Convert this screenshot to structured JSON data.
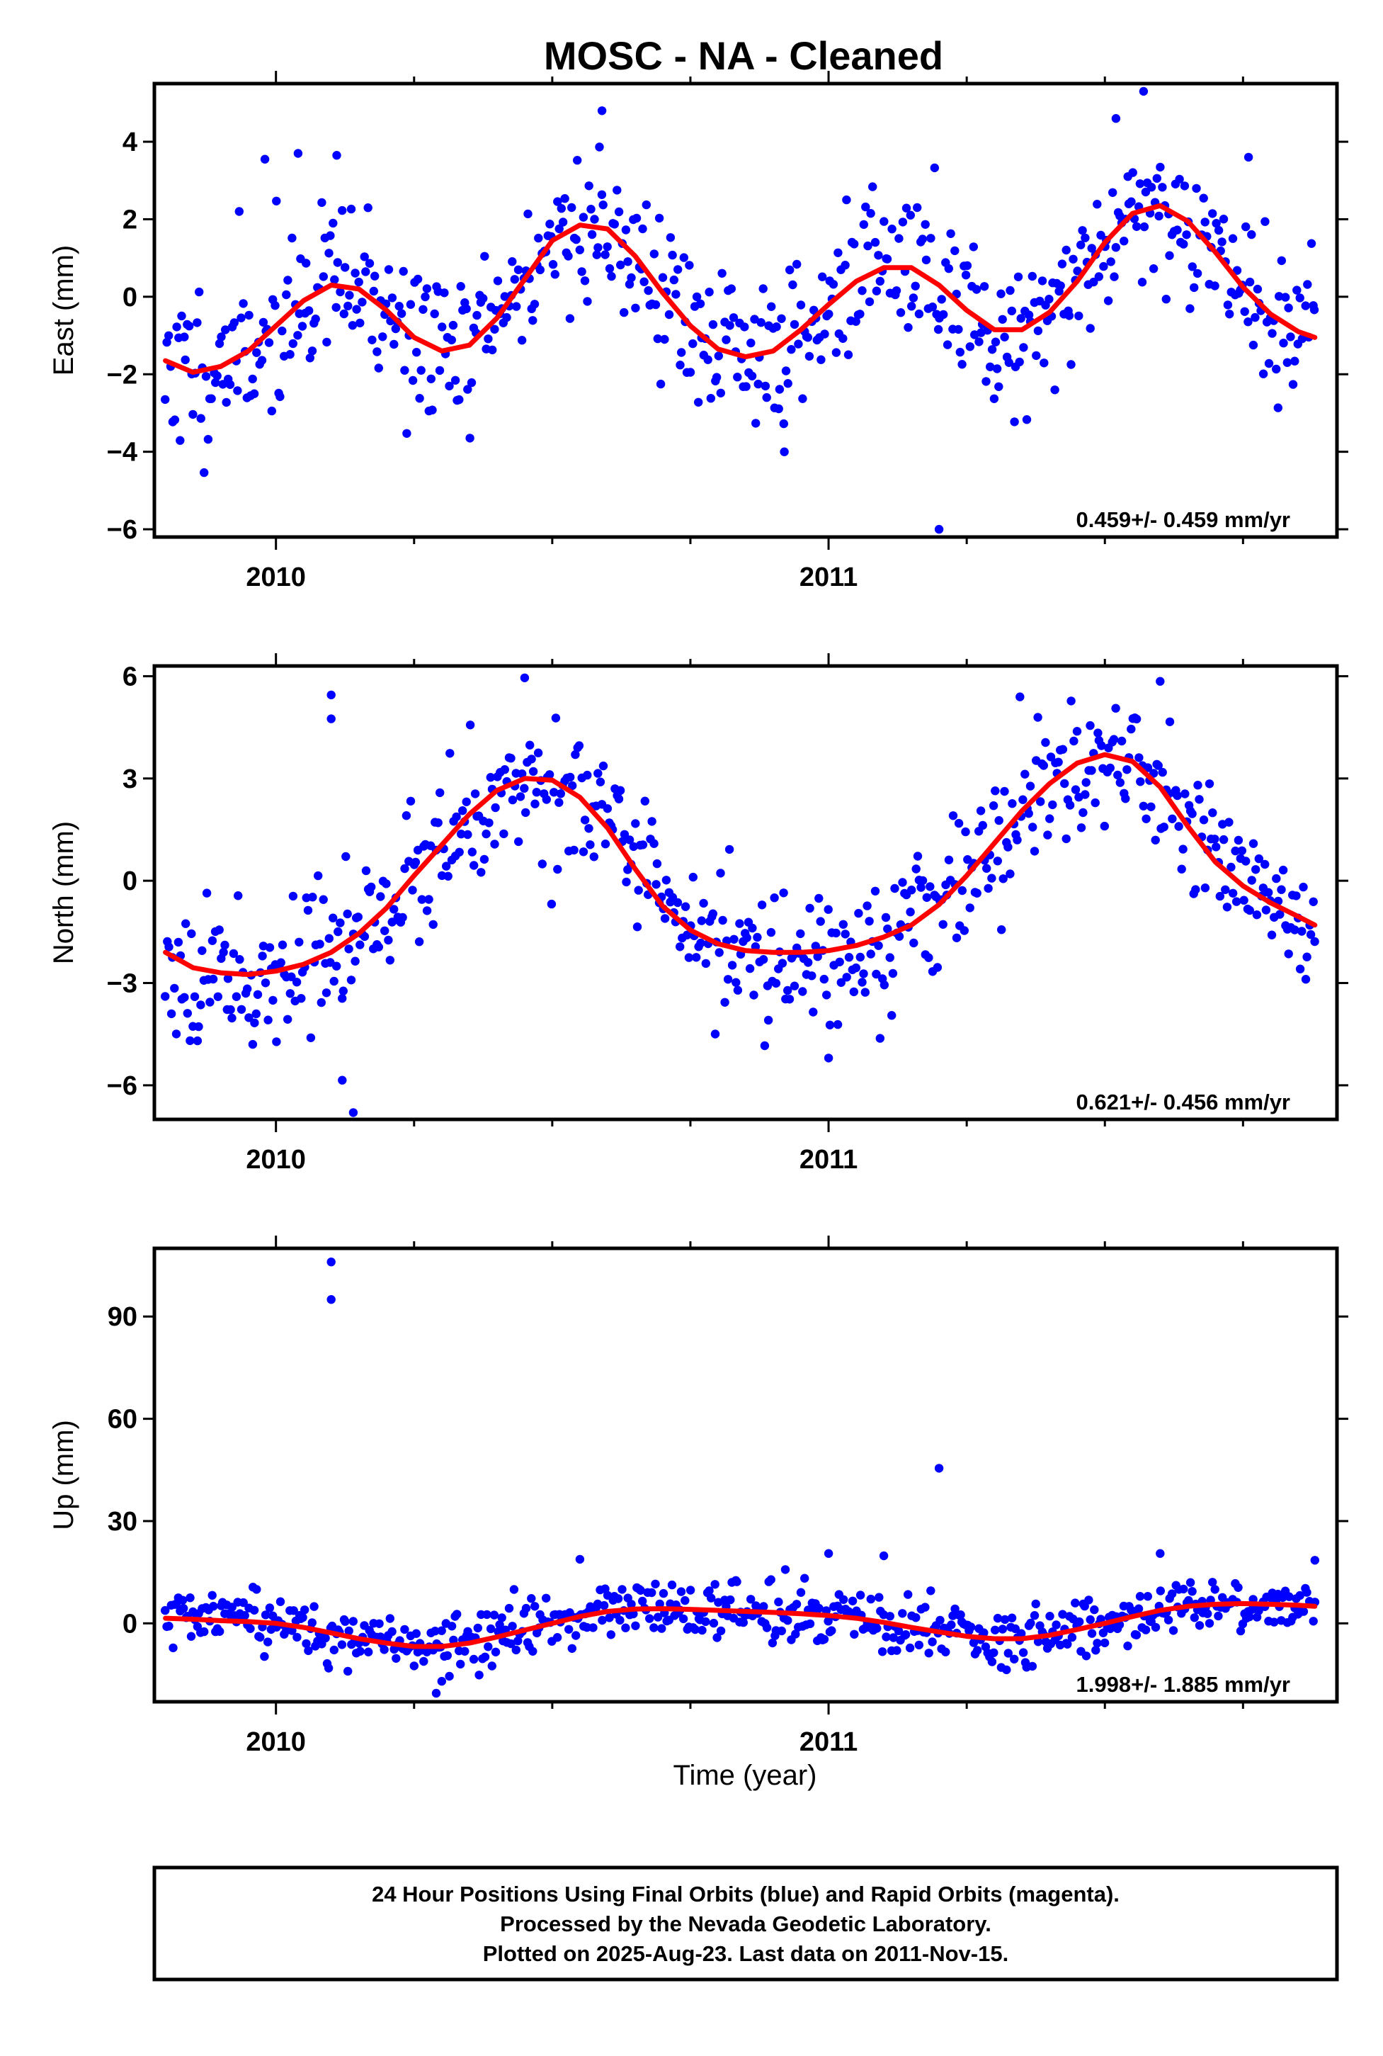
{
  "title": "MOSC  - NA - Cleaned",
  "xlabel": "Time (year)",
  "footer": {
    "line1": "24 Hour Positions Using Final Orbits (blue) and Rapid Orbits (magenta).",
    "line2": "Processed by the Nevada Geodetic Laboratory.",
    "line3": "Plotted on 2025-Aug-23. Last data on 2011-Nov-15."
  },
  "colors": {
    "points": "#0000ff",
    "fit": "#ff0000",
    "frame": "#000000"
  },
  "chart_data": [
    {
      "type": "scatter",
      "component": "east",
      "ylabel": "East (mm)",
      "rate": "0.459+/- 0.459 mm/yr",
      "xlim": [
        2009.78,
        2011.92
      ],
      "ylim": [
        -6.2,
        5.5
      ],
      "yticks": [
        4,
        2,
        0,
        -2,
        -4,
        -6
      ],
      "ytick_labels": [
        "4",
        "2",
        "0",
        "−2",
        "−4",
        "−6"
      ],
      "xticks": [
        2010,
        2011
      ],
      "xtick_labels": [
        "2010",
        "2011"
      ],
      "fit_x": [
        2009.8,
        2009.85,
        2009.9,
        2009.95,
        2010.0,
        2010.05,
        2010.1,
        2010.15,
        2010.2,
        2010.25,
        2010.3,
        2010.35,
        2010.4,
        2010.45,
        2010.5,
        2010.55,
        2010.6,
        2010.65,
        2010.7,
        2010.75,
        2010.8,
        2010.85,
        2010.9,
        2010.95,
        2011.0,
        2011.05,
        2011.1,
        2011.15,
        2011.2,
        2011.25,
        2011.3,
        2011.35,
        2011.4,
        2011.45,
        2011.5,
        2011.55,
        2011.6,
        2011.65,
        2011.7,
        2011.75,
        2011.8,
        2011.85,
        2011.88
      ],
      "fit_y": [
        -1.65,
        -1.95,
        -1.8,
        -1.4,
        -0.75,
        -0.1,
        0.3,
        0.2,
        -0.35,
        -1.05,
        -1.4,
        -1.25,
        -0.55,
        0.45,
        1.45,
        1.85,
        1.75,
        1.05,
        0.1,
        -0.75,
        -1.35,
        -1.55,
        -1.4,
        -0.85,
        -0.2,
        0.4,
        0.75,
        0.75,
        0.3,
        -0.35,
        -0.85,
        -0.85,
        -0.4,
        0.4,
        1.4,
        2.15,
        2.35,
        1.95,
        1.15,
        0.25,
        -0.45,
        -0.9,
        -1.05
      ],
      "scatter": {
        "seed": 11,
        "x_start": 2009.8,
        "x_end": 2011.88,
        "n": 620,
        "noise": 1.05,
        "outliers": [
          [
            2009.98,
            3.55
          ],
          [
            2010.04,
            3.7
          ],
          [
            2010.11,
            3.65
          ],
          [
            2010.59,
            4.8
          ],
          [
            2010.92,
            -4.0
          ],
          [
            2011.2,
            -6.0
          ],
          [
            2011.57,
            5.3
          ],
          [
            2011.52,
            4.6
          ],
          [
            2011.76,
            3.6
          ]
        ]
      }
    },
    {
      "type": "scatter",
      "component": "north",
      "ylabel": "North (mm)",
      "rate": "0.621+/- 0.456 mm/yr",
      "xlim": [
        2009.78,
        2011.92
      ],
      "ylim": [
        -7.0,
        6.3
      ],
      "yticks": [
        6,
        3,
        0,
        -3,
        -6
      ],
      "ytick_labels": [
        "6",
        "3",
        "0",
        "−3",
        "−6"
      ],
      "xticks": [
        2010,
        2011
      ],
      "xtick_labels": [
        "2010",
        "2011"
      ],
      "fit_x": [
        2009.8,
        2009.85,
        2009.9,
        2009.95,
        2010.0,
        2010.05,
        2010.1,
        2010.15,
        2010.2,
        2010.25,
        2010.3,
        2010.35,
        2010.4,
        2010.45,
        2010.5,
        2010.55,
        2010.6,
        2010.65,
        2010.7,
        2010.75,
        2010.8,
        2010.85,
        2010.9,
        2010.95,
        2011.0,
        2011.05,
        2011.1,
        2011.15,
        2011.2,
        2011.25,
        2011.3,
        2011.35,
        2011.4,
        2011.45,
        2011.5,
        2011.55,
        2011.6,
        2011.65,
        2011.7,
        2011.75,
        2011.8,
        2011.85,
        2011.88
      ],
      "fit_y": [
        -2.1,
        -2.55,
        -2.7,
        -2.75,
        -2.65,
        -2.45,
        -2.1,
        -1.55,
        -0.8,
        0.15,
        1.05,
        1.95,
        2.65,
        3.0,
        2.95,
        2.45,
        1.55,
        0.35,
        -0.75,
        -1.45,
        -1.85,
        -2.05,
        -2.1,
        -2.1,
        -2.05,
        -1.9,
        -1.65,
        -1.3,
        -0.7,
        0.15,
        1.1,
        2.05,
        2.85,
        3.45,
        3.7,
        3.5,
        2.75,
        1.6,
        0.55,
        -0.15,
        -0.65,
        -1.05,
        -1.3
      ],
      "scatter": {
        "seed": 23,
        "x_start": 2009.8,
        "x_end": 2011.88,
        "n": 620,
        "noise": 1.0,
        "outliers": [
          [
            2010.1,
            5.45
          ],
          [
            2010.1,
            4.75
          ],
          [
            2010.14,
            -6.8
          ],
          [
            2010.45,
            5.95
          ],
          [
            2011.0,
            -5.2
          ],
          [
            2011.6,
            5.85
          ],
          [
            2010.12,
            -5.85
          ]
        ]
      }
    },
    {
      "type": "scatter",
      "component": "up",
      "ylabel": "Up (mm)",
      "rate": "1.998+/- 1.885 mm/yr",
      "xlim": [
        2009.78,
        2011.92
      ],
      "ylim": [
        -23,
        110
      ],
      "yticks": [
        90,
        60,
        30,
        0
      ],
      "ytick_labels": [
        "90",
        "60",
        "30",
        "0"
      ],
      "xticks": [
        2010,
        2011
      ],
      "xtick_labels": [
        "2010",
        "2011"
      ],
      "fit_x": [
        2009.8,
        2009.85,
        2009.9,
        2009.95,
        2010.0,
        2010.05,
        2010.1,
        2010.15,
        2010.2,
        2010.25,
        2010.3,
        2010.35,
        2010.4,
        2010.45,
        2010.5,
        2010.55,
        2010.6,
        2010.65,
        2010.7,
        2010.75,
        2010.8,
        2010.85,
        2010.9,
        2010.95,
        2011.0,
        2011.05,
        2011.1,
        2011.15,
        2011.2,
        2011.25,
        2011.3,
        2011.35,
        2011.4,
        2011.45,
        2011.5,
        2011.55,
        2011.6,
        2011.65,
        2011.7,
        2011.75,
        2011.8,
        2011.85,
        2011.88
      ],
      "fit_y": [
        1.5,
        1.2,
        0.8,
        0.5,
        0.0,
        -1.2,
        -2.8,
        -4.5,
        -5.8,
        -6.8,
        -6.8,
        -5.8,
        -4.0,
        -2.0,
        0.0,
        2.0,
        3.5,
        4.2,
        4.3,
        4.1,
        3.8,
        3.5,
        3.2,
        2.8,
        2.3,
        1.5,
        0.3,
        -1.2,
        -2.5,
        -3.8,
        -4.5,
        -4.5,
        -3.5,
        -1.8,
        0.0,
        2.0,
        3.8,
        5.0,
        5.6,
        5.8,
        5.6,
        5.3,
        5.0
      ],
      "scatter": {
        "seed": 37,
        "x_start": 2009.8,
        "x_end": 2011.88,
        "n": 620,
        "noise": 4.2,
        "outliers": [
          [
            2010.1,
            106
          ],
          [
            2010.1,
            95
          ],
          [
            2011.2,
            45.5
          ],
          [
            2011.0,
            20.5
          ],
          [
            2011.1,
            19.8
          ],
          [
            2010.55,
            18.8
          ],
          [
            2011.6,
            20.5
          ],
          [
            2011.88,
            18.5
          ],
          [
            2010.29,
            -20.5
          ],
          [
            2010.3,
            -17
          ]
        ]
      }
    }
  ]
}
